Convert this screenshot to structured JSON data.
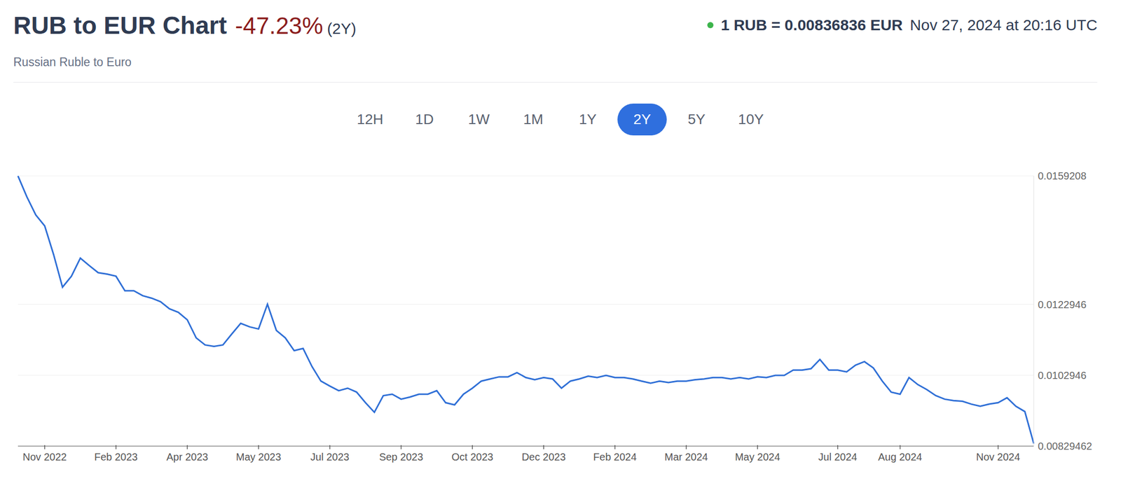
{
  "chart_data": {
    "type": "line",
    "title": "RUB to EUR Chart",
    "subtitle": "Russian Ruble to Euro",
    "annotations": {
      "change": "-47.23%",
      "period": "(2Y)",
      "current_rate": "1 RUB = 0.00836836 EUR",
      "timestamp": "Nov 27, 2024 at 20:16 UTC",
      "buttons": [
        "12H",
        "1D",
        "1W",
        "1M",
        "1Y",
        "2Y",
        "5Y",
        "10Y"
      ],
      "active_button": "2Y"
    },
    "color": "#2f6fd6",
    "grid": true,
    "ylim": [
      0.00829462,
      0.0159208
    ],
    "yticks": [
      0.00829462,
      0.0102946,
      0.0122946,
      0.0159208
    ],
    "categories": [
      null,
      null,
      null,
      "Nov 2022",
      null,
      null,
      null,
      null,
      null,
      null,
      null,
      "Feb 2023",
      null,
      null,
      null,
      null,
      null,
      null,
      null,
      "Apr 2023",
      null,
      null,
      null,
      null,
      null,
      null,
      null,
      "May 2023",
      null,
      null,
      null,
      null,
      null,
      null,
      null,
      "Jul 2023",
      null,
      null,
      null,
      null,
      null,
      null,
      null,
      "Sep 2023",
      null,
      null,
      null,
      null,
      null,
      null,
      null,
      "Oct 2023",
      null,
      null,
      null,
      null,
      null,
      null,
      null,
      "Dec 2023",
      null,
      null,
      null,
      null,
      null,
      null,
      null,
      "Feb 2024",
      null,
      null,
      null,
      null,
      null,
      null,
      null,
      "Mar 2024",
      null,
      null,
      null,
      null,
      null,
      null,
      null,
      "May 2024",
      null,
      null,
      null,
      null,
      null,
      null,
      null,
      null,
      "Jul 2024",
      null,
      null,
      null,
      null,
      null,
      null,
      "Aug 2024",
      null,
      null,
      null,
      null,
      null,
      null,
      null,
      null,
      null,
      null,
      "Nov 2024",
      null,
      null,
      null,
      null
    ],
    "values": [
      0.01592,
      0.01533,
      0.01482,
      0.01451,
      0.0137,
      0.01278,
      0.01309,
      0.0136,
      0.01339,
      0.01319,
      0.01315,
      0.01309,
      0.01268,
      0.01268,
      0.01254,
      0.01247,
      0.01237,
      0.01217,
      0.01207,
      0.01186,
      0.01135,
      0.01115,
      0.01111,
      0.01115,
      0.01146,
      0.01176,
      0.01166,
      0.0116,
      0.0123,
      0.01156,
      0.01135,
      0.01099,
      0.01105,
      0.01054,
      0.01013,
      0.00999,
      0.00986,
      0.00993,
      0.00982,
      0.00952,
      0.00925,
      0.00972,
      0.00976,
      0.00962,
      0.00968,
      0.00976,
      0.00976,
      0.00986,
      0.00952,
      0.00946,
      0.00976,
      0.00993,
      0.01013,
      0.01019,
      0.01025,
      0.01025,
      0.01037,
      0.01023,
      0.01017,
      0.01023,
      0.01019,
      0.00993,
      0.01013,
      0.01019,
      0.01027,
      0.01023,
      0.01029,
      0.01023,
      0.01023,
      0.01019,
      0.01013,
      0.01007,
      0.01013,
      0.01009,
      0.01013,
      0.01013,
      0.01017,
      0.01019,
      0.01023,
      0.01023,
      0.01019,
      0.01023,
      0.01019,
      0.01025,
      0.01023,
      0.01029,
      0.01029,
      0.01044,
      0.01044,
      0.01048,
      0.01074,
      0.01044,
      0.01044,
      0.01039,
      0.01058,
      0.01068,
      0.0105,
      0.01013,
      0.00982,
      0.00976,
      0.01023,
      0.01003,
      0.00989,
      0.00972,
      0.00962,
      0.00958,
      0.00956,
      0.00948,
      0.00942,
      0.00948,
      0.00952,
      0.00966,
      0.00942,
      0.00927,
      0.00836836
    ]
  }
}
